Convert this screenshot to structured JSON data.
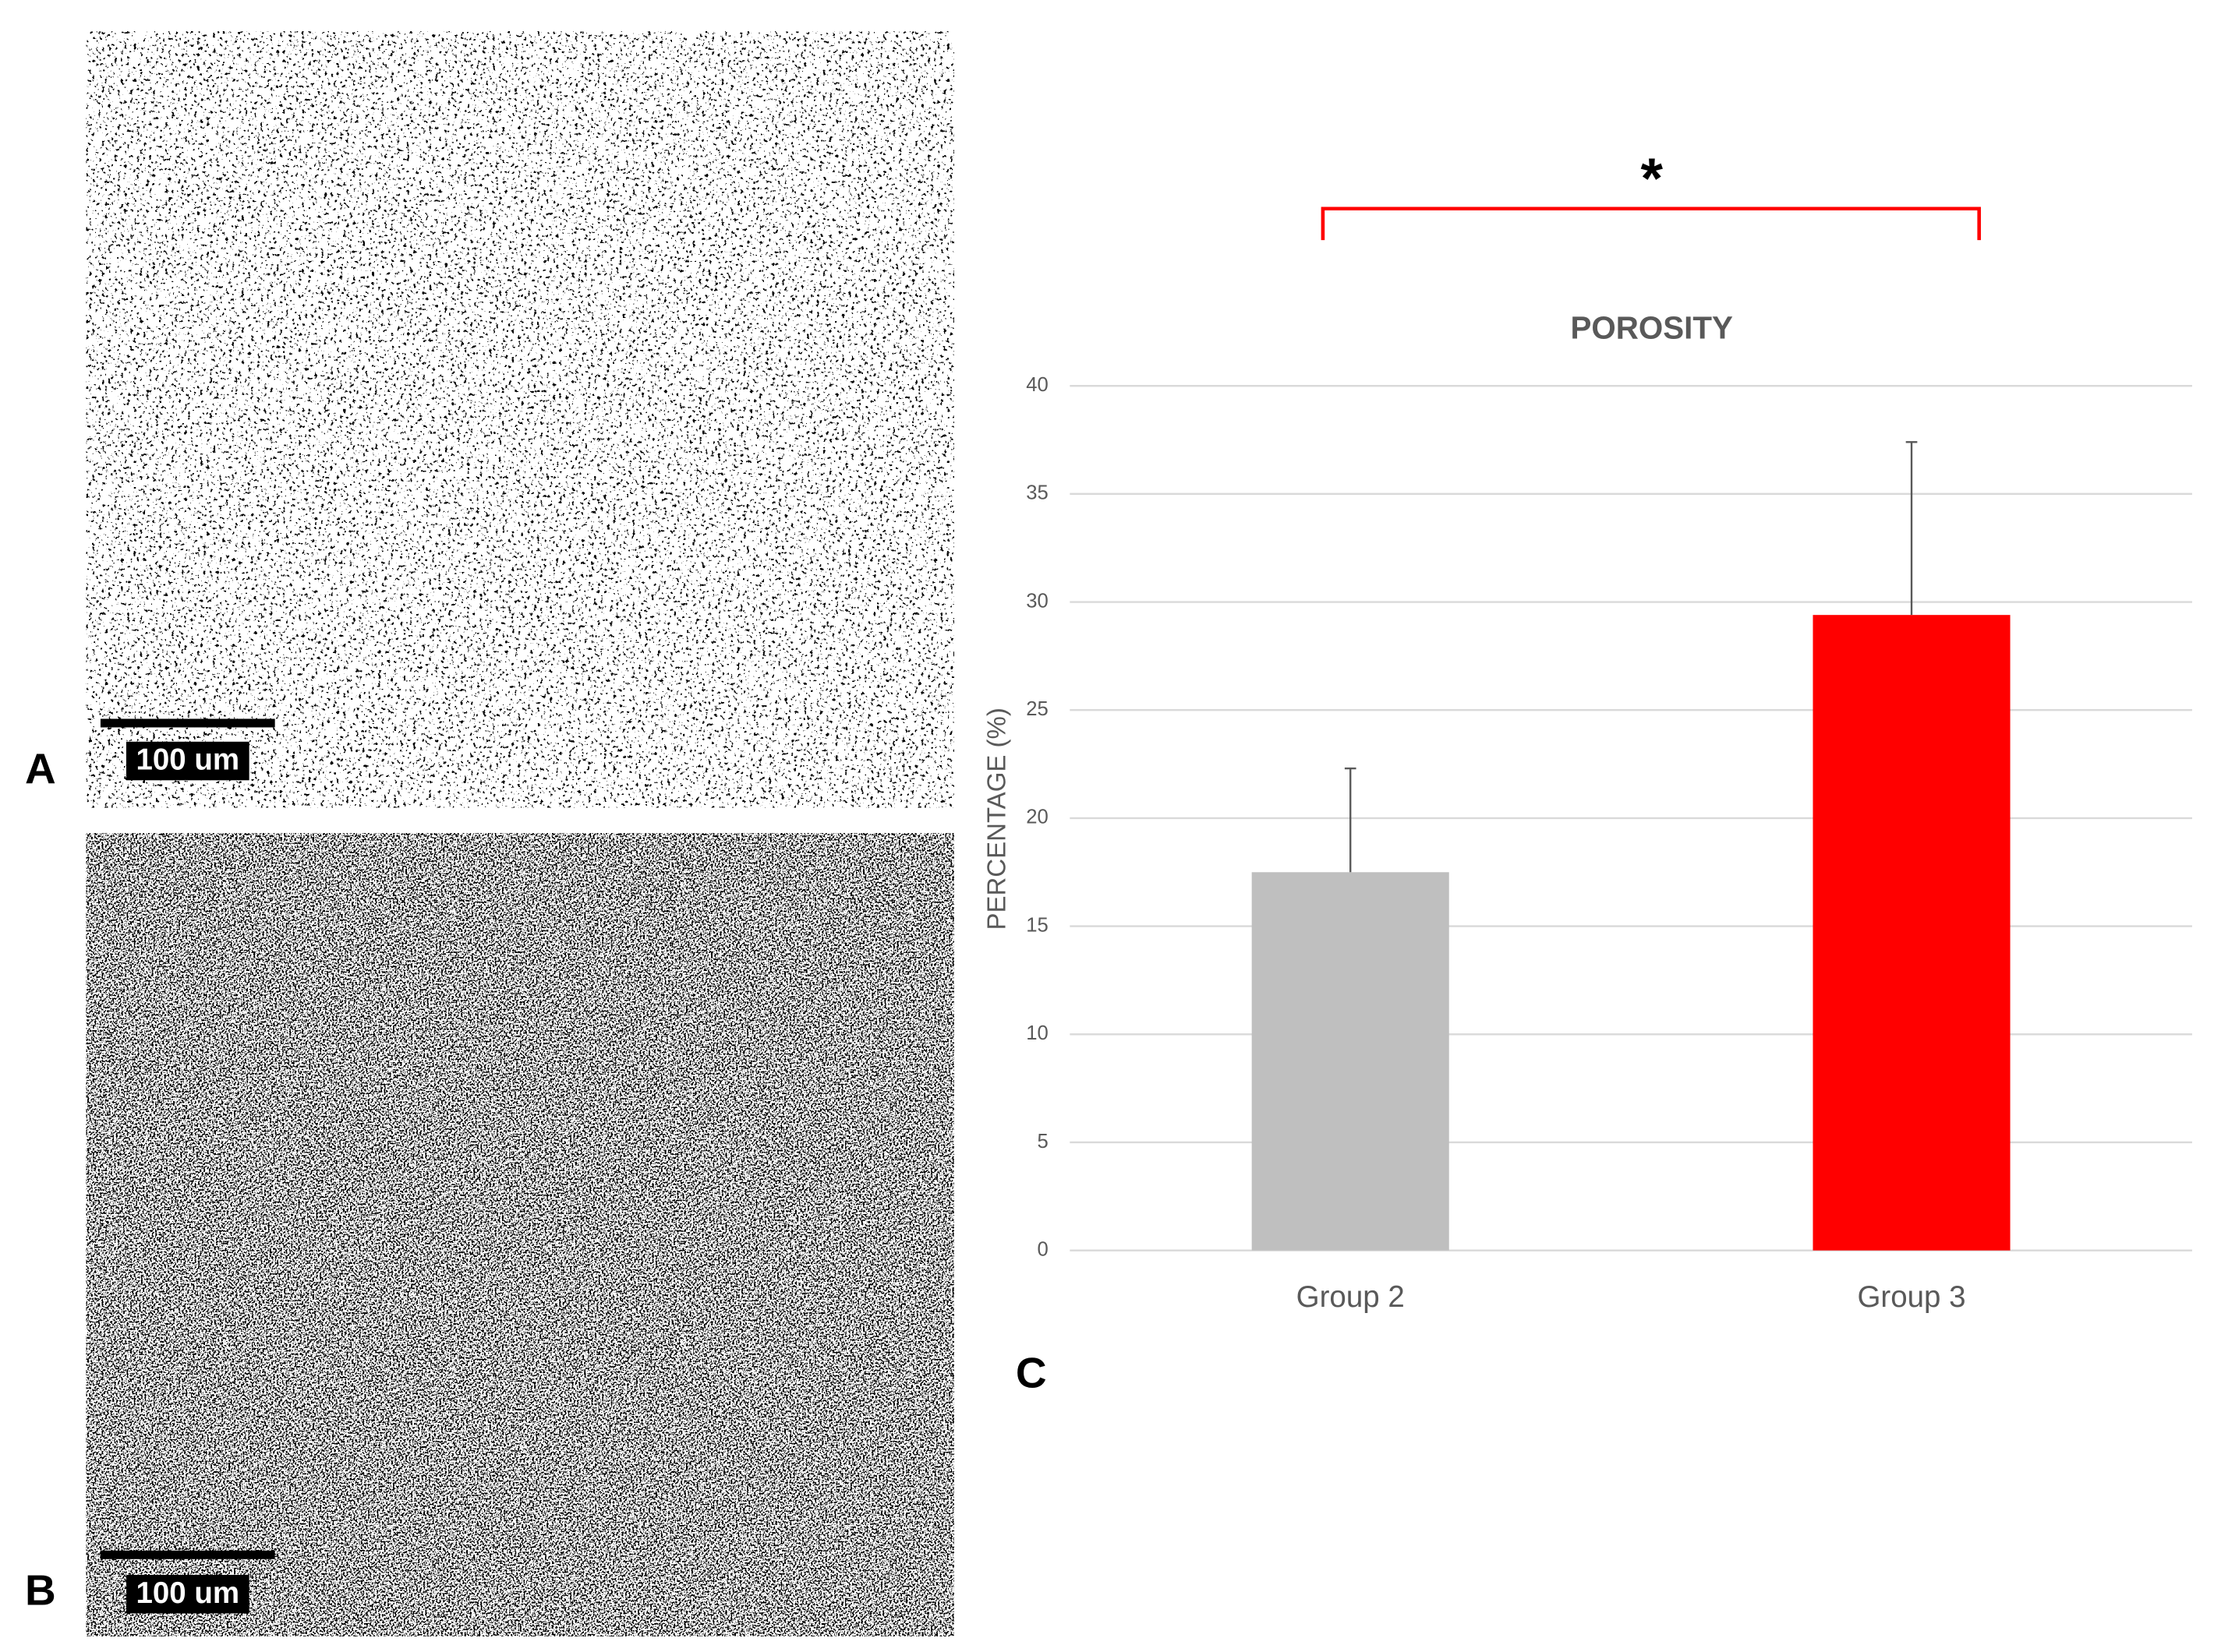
{
  "panels": [
    {
      "label": "A",
      "scale_bar": "100 um"
    },
    {
      "label": "B",
      "scale_bar": "100 um"
    }
  ],
  "chart_data": {
    "type": "bar",
    "panel_label": "C",
    "title": "POROSITY",
    "y_label": "PERCENTAGE (%)",
    "categories": [
      "Group 2",
      "Group 3"
    ],
    "values": [
      17.5,
      29.4
    ],
    "errors": [
      4.8,
      8.0
    ],
    "colors": [
      "#bfbfbf",
      "#ff0000"
    ],
    "ylim": [
      0,
      40
    ],
    "yticks": [
      0,
      5,
      10,
      15,
      20,
      25,
      30,
      35,
      40
    ],
    "grid": true,
    "significance": "*"
  }
}
